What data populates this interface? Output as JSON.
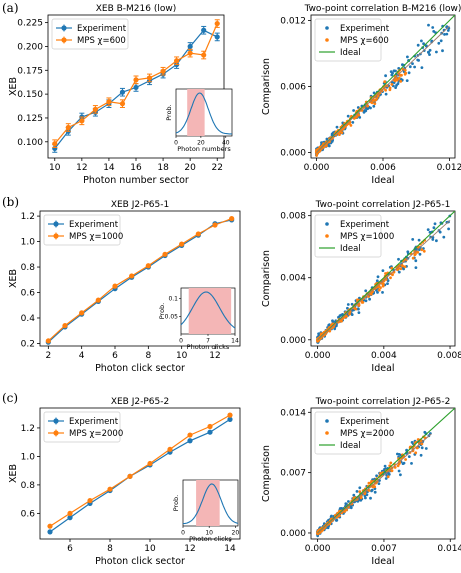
{
  "panel_labels": [
    "(a)",
    "(b)",
    "(c)"
  ],
  "colors": {
    "experiment": "#1f77b4",
    "mps": "#ff7f0e",
    "ideal": "#2ca02c",
    "inset_fill": "#f4b6b6"
  },
  "chart_data": [
    {
      "type": "line",
      "title": "XEB B-M216 (low)",
      "xlabel": "Photon number sector",
      "ylabel": "XEB",
      "xlim": [
        9.5,
        22.5
      ],
      "ylim": [
        0.083,
        0.233
      ],
      "xticks": [
        10,
        12,
        14,
        16,
        18,
        20,
        22
      ],
      "yticks": [
        0.1,
        0.125,
        0.15,
        0.175,
        0.2,
        0.225
      ],
      "ytick_labels": [
        "0.100",
        "0.125",
        "0.150",
        "0.175",
        "0.200",
        "0.225"
      ],
      "x": [
        10,
        11,
        12,
        13,
        14,
        15,
        16,
        17,
        18,
        19,
        20,
        21,
        22
      ],
      "legend": "top-left",
      "series": [
        {
          "name": "Experiment",
          "values": [
            0.093,
            0.111,
            0.126,
            0.131,
            0.14,
            0.152,
            0.157,
            0.164,
            0.171,
            0.181,
            0.2,
            0.217,
            0.21
          ],
          "errors": [
            0.004,
            0.004,
            0.004,
            0.004,
            0.004,
            0.004,
            0.004,
            0.004,
            0.004,
            0.004,
            0.004,
            0.004,
            0.004
          ]
        },
        {
          "name": "MPS χ=600",
          "values": [
            0.098,
            0.115,
            0.122,
            0.134,
            0.142,
            0.14,
            0.165,
            0.167,
            0.174,
            0.185,
            0.193,
            0.191,
            0.224
          ],
          "errors": [
            0.004,
            0.004,
            0.004,
            0.004,
            0.004,
            0.004,
            0.004,
            0.004,
            0.004,
            0.004,
            0.004,
            0.004,
            0.004
          ]
        }
      ],
      "inset": {
        "xlabel": "Photon numbers",
        "ylabel": "Prob.",
        "xlim": [
          0,
          45
        ],
        "xticks": [
          0,
          20,
          40
        ],
        "band": [
          9,
          23
        ],
        "peak": 19,
        "sigma": 7
      }
    },
    {
      "type": "scatter",
      "title": "Two-point correlation B-M216 (low)",
      "xlabel": "Ideal",
      "ylabel": "Comparison",
      "xlim": [
        -0.0005,
        0.0125
      ],
      "ylim": [
        -0.0005,
        0.0125
      ],
      "xticks": [
        0.0,
        0.006,
        0.012
      ],
      "xtick_labels": [
        "0.000",
        "0.006",
        "0.012"
      ],
      "yticks": [
        0.0,
        0.006,
        0.012
      ],
      "ytick_labels": [
        "0.000",
        "0.006",
        "0.012"
      ],
      "legend": "top-left",
      "series": [
        {
          "name": "Experiment",
          "marker": "dot",
          "trend": {
            "from": [
              0,
              0
            ],
            "to": [
              0.012,
              0.0115
            ]
          }
        },
        {
          "name": "MPS χ=600",
          "marker": "dot",
          "trend": {
            "from": [
              0,
              0
            ],
            "to": [
              0.0085,
              0.008
            ]
          }
        },
        {
          "name": "Ideal",
          "marker": "line",
          "trend": {
            "from": [
              0,
              0
            ],
            "to": [
              0.0125,
              0.0125
            ]
          }
        }
      ]
    },
    {
      "type": "line",
      "title": "XEB J2-P65-1",
      "xlabel": "Photon click sector",
      "ylabel": "XEB",
      "xlim": [
        1.5,
        13.5
      ],
      "ylim": [
        0.18,
        1.24
      ],
      "xticks": [
        2,
        4,
        6,
        8,
        10,
        12
      ],
      "yticks": [
        0.2,
        0.4,
        0.6,
        0.8,
        1.0,
        1.2
      ],
      "ytick_labels": [
        "0.2",
        "0.4",
        "0.6",
        "0.8",
        "1.0",
        "1.2"
      ],
      "x": [
        2,
        3,
        4,
        5,
        6,
        7,
        8,
        9,
        10,
        11,
        12,
        13
      ],
      "legend": "top-left",
      "series": [
        {
          "name": "Experiment",
          "values": [
            0.21,
            0.33,
            0.43,
            0.53,
            0.63,
            0.72,
            0.8,
            0.89,
            0.97,
            1.05,
            1.14,
            1.17
          ]
        },
        {
          "name": "MPS χ=1000",
          "values": [
            0.22,
            0.34,
            0.44,
            0.54,
            0.65,
            0.73,
            0.81,
            0.9,
            0.98,
            1.06,
            1.13,
            1.18
          ]
        }
      ],
      "inset": {
        "xlabel": "Photon clicks",
        "ylabel": "Prob.",
        "xlim": [
          0,
          14
        ],
        "xticks": [
          0,
          7,
          14
        ],
        "yticks": [
          0.05,
          0.1
        ],
        "band": [
          2,
          13
        ],
        "peak": 6.5,
        "sigma": 3.5
      }
    },
    {
      "type": "scatter",
      "title": "Two-point correlation J2-P65-1",
      "xlabel": "Ideal",
      "ylabel": "Comparison",
      "xlim": [
        -0.0004,
        0.0083
      ],
      "ylim": [
        -0.0004,
        0.0083
      ],
      "xticks": [
        0.0,
        0.004,
        0.008
      ],
      "xtick_labels": [
        "0.000",
        "0.004",
        "0.008"
      ],
      "yticks": [
        0.0,
        0.004,
        0.008
      ],
      "ytick_labels": [
        "0.000",
        "0.004",
        "0.008"
      ],
      "legend": "top-left",
      "series": [
        {
          "name": "Experiment",
          "marker": "dot",
          "trend": {
            "from": [
              0,
              0
            ],
            "to": [
              0.008,
              0.0077
            ]
          }
        },
        {
          "name": "MPS χ=1000",
          "marker": "dot",
          "trend": {
            "from": [
              0,
              0
            ],
            "to": [
              0.0065,
              0.0062
            ]
          }
        },
        {
          "name": "Ideal",
          "marker": "line",
          "trend": {
            "from": [
              0,
              0
            ],
            "to": [
              0.0083,
              0.0083
            ]
          }
        }
      ]
    },
    {
      "type": "line",
      "title": "XEB J2-P65-2",
      "xlabel": "Photon click sector",
      "ylabel": "XEB",
      "xlim": [
        4.5,
        14.5
      ],
      "ylim": [
        0.42,
        1.34
      ],
      "xticks": [
        6,
        8,
        10,
        12,
        14
      ],
      "yticks": [
        0.6,
        0.8,
        1.0,
        1.2
      ],
      "ytick_labels": [
        "0.6",
        "0.8",
        "1.0",
        "1.2"
      ],
      "x": [
        5,
        6,
        7,
        8,
        9,
        10,
        11,
        12,
        13,
        14
      ],
      "legend": "top-left",
      "series": [
        {
          "name": "Experiment",
          "values": [
            0.47,
            0.57,
            0.67,
            0.76,
            0.86,
            0.94,
            1.03,
            1.11,
            1.17,
            1.26
          ]
        },
        {
          "name": "MPS χ=2000",
          "values": [
            0.51,
            0.6,
            0.69,
            0.77,
            0.86,
            0.95,
            1.05,
            1.15,
            1.21,
            1.29
          ]
        }
      ],
      "inset": {
        "xlabel": "Photon clicks",
        "ylabel": "Prob.",
        "xlim": [
          0,
          21
        ],
        "xticks": [
          0,
          10,
          20
        ],
        "band": [
          5,
          14
        ],
        "peak": 11,
        "sigma": 3.5
      }
    },
    {
      "type": "scatter",
      "title": "Two-point correlation J2-P65-2",
      "xlabel": "Ideal",
      "ylabel": "Comparison",
      "xlim": [
        -0.0007,
        0.0145
      ],
      "ylim": [
        -0.0007,
        0.0145
      ],
      "xticks": [
        0.0,
        0.007,
        0.014
      ],
      "xtick_labels": [
        "0.000",
        "0.007",
        "0.014"
      ],
      "yticks": [
        0.0,
        0.007,
        0.014
      ],
      "ytick_labels": [
        "0.000",
        "0.007",
        "0.014"
      ],
      "legend": "top-left",
      "series": [
        {
          "name": "Experiment",
          "marker": "dot",
          "trend": {
            "from": [
              0,
              0
            ],
            "to": [
              0.012,
              0.0115
            ]
          }
        },
        {
          "name": "MPS χ=2000",
          "marker": "dot",
          "trend": {
            "from": [
              0,
              0
            ],
            "to": [
              0.0115,
              0.0112
            ]
          }
        },
        {
          "name": "Ideal",
          "marker": "line",
          "trend": {
            "from": [
              0,
              0
            ],
            "to": [
              0.0145,
              0.0145
            ]
          }
        }
      ]
    }
  ]
}
